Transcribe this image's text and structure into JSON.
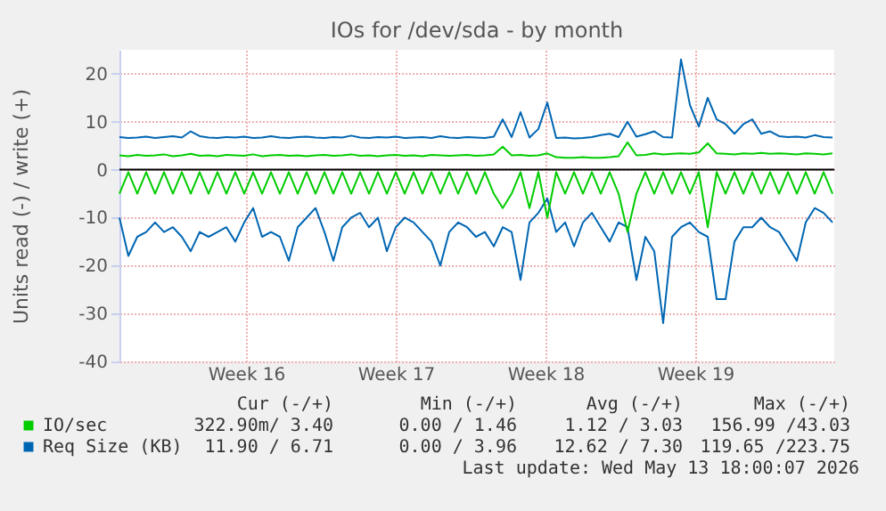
{
  "chart_data": {
    "type": "line",
    "title": "IOs for /dev/sda - by month",
    "ylabel": "Units read (-) / write (+)",
    "x": [
      "2026-04-10T14:00",
      "2026-04-11T00:00",
      "2026-04-11T10:00",
      "2026-04-11T20:00",
      "2026-04-12T06:00",
      "2026-04-12T16:00",
      "2026-04-13T02:00",
      "2026-04-13T12:00",
      "2026-04-13T22:00",
      "2026-04-14T08:00",
      "2026-04-14T18:00",
      "2026-04-15T04:00",
      "2026-04-15T14:00",
      "2026-04-16T00:00",
      "2026-04-16T10:00",
      "2026-04-16T20:00",
      "2026-04-17T06:00",
      "2026-04-17T16:00",
      "2026-04-18T02:00",
      "2026-04-18T12:00",
      "2026-04-18T22:00",
      "2026-04-19T08:00",
      "2026-04-19T18:00",
      "2026-04-20T04:00",
      "2026-04-20T14:00",
      "2026-04-21T00:00",
      "2026-04-21T10:00",
      "2026-04-21T20:00",
      "2026-04-22T06:00",
      "2026-04-22T16:00",
      "2026-04-23T02:00",
      "2026-04-23T12:00",
      "2026-04-23T22:00",
      "2026-04-24T08:00",
      "2026-04-24T18:00",
      "2026-04-25T04:00",
      "2026-04-25T14:00",
      "2026-04-26T00:00",
      "2026-04-26T10:00",
      "2026-04-26T20:00",
      "2026-04-27T06:00",
      "2026-04-27T16:00",
      "2026-04-28T02:00",
      "2026-04-28T12:00",
      "2026-04-28T22:00",
      "2026-04-29T08:00",
      "2026-04-29T18:00",
      "2026-04-30T04:00",
      "2026-04-30T14:00",
      "2026-05-01T00:00",
      "2026-05-01T10:00",
      "2026-05-01T20:00",
      "2026-05-02T06:00",
      "2026-05-02T16:00",
      "2026-05-03T02:00",
      "2026-05-03T12:00",
      "2026-05-03T22:00",
      "2026-05-04T08:00",
      "2026-05-04T18:00",
      "2026-05-05T04:00",
      "2026-05-05T14:00",
      "2026-05-06T00:00",
      "2026-05-06T10:00",
      "2026-05-06T20:00",
      "2026-05-07T06:00",
      "2026-05-07T16:00",
      "2026-05-08T02:00",
      "2026-05-08T12:00",
      "2026-05-08T22:00",
      "2026-05-09T08:00",
      "2026-05-09T18:00",
      "2026-05-10T04:00",
      "2026-05-10T14:00",
      "2026-05-11T00:00",
      "2026-05-11T10:00",
      "2026-05-11T20:00",
      "2026-05-12T06:00",
      "2026-05-12T16:00",
      "2026-05-13T02:00",
      "2026-05-13T12:00",
      "2026-05-13T22:00"
    ],
    "series": [
      {
        "name": "Req Size (KB)",
        "color": "#0066b3",
        "values": [
          6.8,
          6.6,
          6.7,
          6.9,
          6.6,
          6.8,
          7.0,
          6.7,
          8.0,
          7.0,
          6.7,
          6.6,
          6.8,
          6.7,
          6.9,
          6.6,
          6.7,
          7.0,
          6.7,
          6.6,
          6.8,
          6.9,
          6.7,
          6.6,
          6.8,
          6.7,
          7.1,
          6.7,
          6.6,
          6.8,
          6.7,
          6.9,
          6.6,
          6.7,
          6.8,
          6.6,
          7.0,
          6.7,
          6.6,
          6.8,
          6.7,
          6.6,
          6.9,
          10.5,
          6.8,
          12.0,
          6.7,
          8.5,
          14.0,
          6.6,
          6.7,
          6.5,
          6.6,
          6.8,
          7.2,
          7.5,
          6.8,
          10.0,
          6.9,
          7.4,
          8.0,
          6.8,
          6.7,
          23.0,
          13.5,
          9.0,
          15.0,
          10.5,
          9.5,
          7.5,
          9.5,
          10.5,
          7.5,
          8.0,
          7.0,
          6.8,
          6.9,
          6.7,
          7.2,
          6.8,
          6.7
        ]
      },
      {
        "color": "#0066b3",
        "values": [
          -10,
          -18,
          -14,
          -13,
          -11,
          -13,
          -12,
          -14,
          -17,
          -13,
          -14,
          -13,
          -12,
          -15,
          -11,
          -8,
          -14,
          -13,
          -14,
          -19,
          -12,
          -10,
          -8,
          -13,
          -19,
          -12,
          -10,
          -9,
          -12,
          -10,
          -17,
          -12,
          -10,
          -11,
          -13,
          -15,
          -20,
          -13,
          -11,
          -12,
          -14,
          -13,
          -16,
          -12,
          -13,
          -23,
          -11,
          -9,
          -6,
          -13,
          -11,
          -16,
          -11,
          -9,
          -12,
          -15,
          -11,
          -12,
          -23,
          -14,
          -17,
          -32,
          -14,
          -12,
          -11,
          -13,
          -14,
          -27,
          -27,
          -15,
          -12,
          -12,
          -10,
          -12,
          -13,
          -16,
          -19,
          -11,
          -8,
          -9,
          -11
        ]
      },
      {
        "name": "IO/sec",
        "color": "#00cc00",
        "values": [
          3.0,
          2.8,
          3.1,
          2.9,
          3.0,
          3.2,
          2.8,
          3.0,
          3.3,
          2.9,
          3.0,
          2.8,
          3.1,
          3.0,
          2.9,
          3.2,
          2.8,
          3.0,
          3.1,
          2.9,
          3.0,
          2.8,
          3.0,
          3.1,
          2.9,
          3.0,
          3.2,
          2.9,
          3.0,
          2.8,
          3.0,
          3.1,
          2.9,
          3.0,
          2.8,
          3.1,
          3.0,
          2.9,
          3.0,
          3.1,
          2.9,
          3.0,
          3.2,
          4.8,
          3.0,
          3.1,
          2.9,
          3.0,
          3.4,
          2.6,
          2.5,
          2.5,
          2.6,
          2.5,
          2.5,
          2.6,
          2.8,
          5.7,
          3.0,
          3.1,
          3.4,
          3.2,
          3.3,
          3.4,
          3.3,
          3.6,
          5.5,
          3.4,
          3.3,
          3.2,
          3.4,
          3.3,
          3.5,
          3.3,
          3.4,
          3.3,
          3.2,
          3.4,
          3.3,
          3.2,
          3.4
        ]
      },
      {
        "color": "#00cc00",
        "values": [
          -5,
          -0.5,
          -5,
          -0.5,
          -5,
          -0.5,
          -5,
          -0.5,
          -5,
          -0.5,
          -5,
          -0.5,
          -5,
          -0.5,
          -5,
          -0.5,
          -5,
          -0.5,
          -5,
          -0.5,
          -5,
          -0.5,
          -5,
          -0.5,
          -5,
          -0.5,
          -5,
          -0.5,
          -5,
          -0.5,
          -5,
          -0.5,
          -5,
          -0.5,
          -5,
          -0.5,
          -5,
          -0.5,
          -5,
          -0.5,
          -5,
          -0.5,
          -5,
          -8,
          -5,
          -0.5,
          -8,
          -0.5,
          -10,
          -0.5,
          -5,
          -0.5,
          -5,
          -0.5,
          -5,
          -0.5,
          -5,
          -13,
          -5,
          -0.5,
          -5,
          -0.5,
          -5,
          -0.5,
          -5,
          -0.5,
          -12,
          -0.5,
          -5,
          -0.5,
          -5,
          -0.5,
          -5,
          -0.5,
          -5,
          -0.5,
          -5,
          -0.5,
          -5,
          -0.5,
          -5
        ]
      }
    ],
    "xlim": [
      "2026-04-10T14:00",
      "2026-05-14T00:00"
    ],
    "xticks": [
      {
        "value": "2026-04-16T12:00",
        "label": "Week 16"
      },
      {
        "value": "2026-04-23T12:00",
        "label": "Week 17"
      },
      {
        "value": "2026-04-30T12:00",
        "label": "Week 18"
      },
      {
        "value": "2026-05-07T12:00",
        "label": "Week 19"
      }
    ],
    "ylim": [
      -40,
      25
    ],
    "yticks": [
      -40,
      -30,
      -20,
      -10,
      0,
      10,
      20
    ],
    "ref_lines": [
      {
        "axis": "y",
        "value": 0,
        "color": "#000000"
      }
    ],
    "grid": true,
    "legend": "bottom",
    "annotations": [
      "Cur (-/+)",
      "Min (-/+)",
      "Avg (-/+)",
      "Max (-/+)",
      "322.90m/ 3.40",
      "0.00 / 1.46",
      "1.12 / 3.03",
      "156.99 /43.03",
      "11.90 / 6.71",
      "0.00 / 3.96",
      "12.62 / 7.30",
      "119.65 /223.75",
      "Last update: Wed May 13 18:00:07 2026"
    ]
  }
}
